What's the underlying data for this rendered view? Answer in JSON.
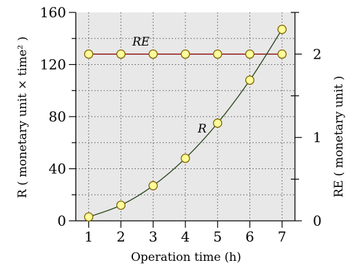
{
  "chart_data": {
    "type": "line",
    "x": [
      1,
      2,
      3,
      4,
      5,
      6,
      7
    ],
    "xlabel": "Operation time (h)",
    "xlim": [
      0.6,
      7.4
    ],
    "xticks": [
      "1",
      "2",
      "3",
      "4",
      "5",
      "6",
      "7"
    ],
    "ylabel_left": "R ( monetary unit × time² )",
    "ylim_left": [
      0,
      160
    ],
    "yticks_left": [
      "0",
      "40",
      "80",
      "120",
      "160"
    ],
    "ylabel_right": "RE ( monetary unit )",
    "ylim_right": [
      0,
      2.5
    ],
    "yticks_right": [
      "0",
      "1",
      "2"
    ],
    "grid": true,
    "series": [
      {
        "name": "RE",
        "axis": "right",
        "values": [
          2,
          2,
          2,
          2,
          2,
          2,
          2
        ],
        "line_color": "#8b0000"
      },
      {
        "name": "R",
        "axis": "left",
        "values": [
          3,
          12,
          27,
          48,
          75,
          108,
          147
        ],
        "line_color": "#2e4a1f"
      }
    ],
    "colors": {
      "plot_background": "#e8e8e8",
      "marker_fill": "#ffff99",
      "marker_stroke": "#806000"
    }
  }
}
